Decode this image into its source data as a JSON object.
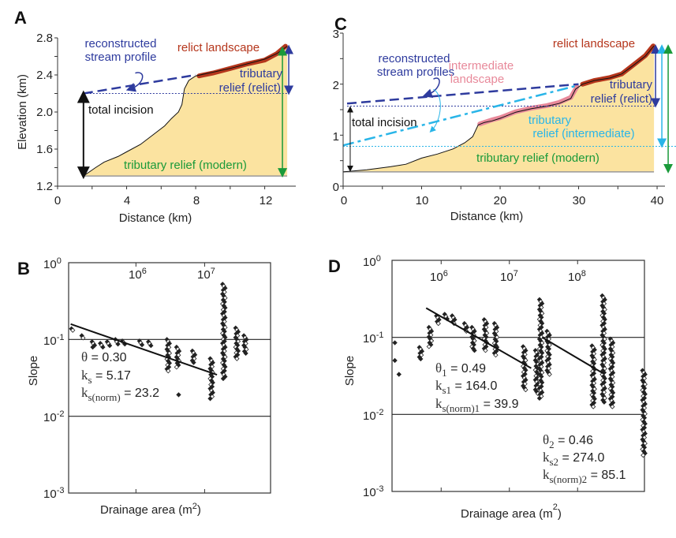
{
  "colors": {
    "relict": "#b5361c",
    "recon": "#2e3b9e",
    "intermediate": "#e8899a",
    "interm_blue": "#29b5e8",
    "modern": "#1a9a3a",
    "fill": "#fbe3a0"
  },
  "chart_data": [
    {
      "panel": "A",
      "type": "area",
      "xlabel": "Distance (km)",
      "ylabel": "Elevation (km)",
      "xlim": [
        0,
        13.8
      ],
      "ylim": [
        1.2,
        2.8
      ],
      "xticks": [
        "0",
        "4",
        "8",
        "12"
      ],
      "yticks": [
        "2.8",
        "2.4",
        "2.0",
        "1.6",
        "1.2"
      ],
      "profile": [
        [
          1.5,
          1.31
        ],
        [
          2.2,
          1.4
        ],
        [
          2.7,
          1.46
        ],
        [
          3.5,
          1.52
        ],
        [
          4,
          1.57
        ],
        [
          4.8,
          1.65
        ],
        [
          5.5,
          1.75
        ],
        [
          6.2,
          1.85
        ],
        [
          6.6,
          1.93
        ],
        [
          7.0,
          2.0
        ],
        [
          7.2,
          2.08
        ],
        [
          7.35,
          2.25
        ],
        [
          7.6,
          2.34
        ],
        [
          8,
          2.39
        ],
        [
          9,
          2.43
        ],
        [
          10,
          2.47
        ],
        [
          11,
          2.52
        ],
        [
          12,
          2.57
        ],
        [
          12.7,
          2.63
        ],
        [
          13.3,
          2.71
        ]
      ],
      "relict": [
        [
          8.2,
          2.39
        ],
        [
          9,
          2.42
        ],
        [
          10,
          2.47
        ],
        [
          11,
          2.52
        ],
        [
          12,
          2.56
        ],
        [
          12.7,
          2.63
        ],
        [
          13.2,
          2.71
        ]
      ],
      "reconstructed": [
        [
          1.5,
          2.2
        ],
        [
          8,
          2.4
        ]
      ],
      "relict_base": 2.2,
      "modern_base": 1.31,
      "labels": {
        "recon1": "reconstructed",
        "recon2": "stream profile",
        "relict": "relict landscape",
        "trib1": "tributary",
        "trib2": "relief (relict)",
        "incision": "total incision",
        "modern": "tributary relief (modern)"
      }
    },
    {
      "panel": "C",
      "type": "area",
      "xlabel": "Distance (km)",
      "ylabel": "",
      "xlim": [
        0,
        41
      ],
      "ylim": [
        0,
        3
      ],
      "xticks": [
        "0",
        "10",
        "20",
        "30",
        "40"
      ],
      "yticks": [
        "3",
        "2",
        "1",
        "0"
      ],
      "profile": [
        [
          0,
          0.28
        ],
        [
          3,
          0.32
        ],
        [
          6,
          0.38
        ],
        [
          8,
          0.43
        ],
        [
          10,
          0.55
        ],
        [
          12,
          0.63
        ],
        [
          14,
          0.73
        ],
        [
          15.5,
          0.85
        ],
        [
          16.5,
          0.97
        ],
        [
          17.2,
          1.2
        ],
        [
          18,
          1.25
        ],
        [
          19,
          1.28
        ],
        [
          20,
          1.33
        ],
        [
          22,
          1.45
        ],
        [
          24,
          1.52
        ],
        [
          26,
          1.57
        ],
        [
          27.5,
          1.62
        ],
        [
          29,
          1.72
        ],
        [
          29.6,
          1.9
        ],
        [
          30.5,
          2.0
        ],
        [
          32,
          2.07
        ],
        [
          34,
          2.12
        ],
        [
          35.5,
          2.2
        ],
        [
          37,
          2.37
        ],
        [
          38.5,
          2.55
        ],
        [
          39.6,
          2.75
        ]
      ],
      "relict": [
        [
          30.5,
          2.0
        ],
        [
          32,
          2.07
        ],
        [
          34,
          2.13
        ],
        [
          35.5,
          2.2
        ],
        [
          37,
          2.38
        ],
        [
          38.5,
          2.56
        ],
        [
          39.5,
          2.75
        ]
      ],
      "intermediate": [
        [
          17.4,
          1.22
        ],
        [
          19,
          1.3
        ],
        [
          20,
          1.34
        ],
        [
          22,
          1.46
        ],
        [
          24,
          1.53
        ],
        [
          26,
          1.58
        ],
        [
          27.5,
          1.64
        ],
        [
          29,
          1.74
        ],
        [
          29.8,
          1.95
        ]
      ],
      "reconstructed": [
        [
          0.5,
          1.62
        ],
        [
          30,
          2.0
        ]
      ],
      "reconstructed_intermediate": [
        [
          0,
          0.8
        ],
        [
          30,
          1.98
        ]
      ],
      "relict_base": 1.57,
      "intermediate_base": 0.78,
      "modern_base": 0.28,
      "labels": {
        "recon1": "reconstructed",
        "recon2": "stream profiles",
        "relict": "relict landscape",
        "inter1": "intermediate",
        "inter2": "landscape",
        "trib1": "tributary",
        "trib2": "relief (relict)",
        "incision": "total incision",
        "tribi1": "tributary",
        "tribi2": "relief (intermediate)",
        "modern": "tributary relief (modern)"
      }
    },
    {
      "panel": "B",
      "type": "scatter",
      "scale": "log-log",
      "xlabel": "Drainage area (m",
      "xlabel_exp": "2",
      "xlabel_close": ")",
      "ylabel": "Slope",
      "xlim_log10": [
        5.02,
        7.96
      ],
      "ylim_log10": [
        -3,
        0
      ],
      "xticks": [
        {
          "base": "10",
          "exp": "6",
          "log": 6
        },
        {
          "base": "10",
          "exp": "7",
          "log": 7
        }
      ],
      "yticks": [
        {
          "base": "10",
          "exp": "0"
        },
        {
          "base": "10",
          "exp": "-1"
        },
        {
          "base": "10",
          "exp": "-2"
        },
        {
          "base": "10",
          "exp": "-3"
        }
      ],
      "clusters_log10": [
        [
          5.08,
          -0.86,
          -0.88
        ],
        [
          5.23,
          -0.95,
          -0.98
        ],
        [
          5.38,
          -1.03,
          -1.1
        ],
        [
          5.5,
          -1.05,
          -1.1
        ],
        [
          5.6,
          -1.03,
          -1.08
        ],
        [
          5.72,
          -1.0,
          -1.06
        ],
        [
          5.82,
          -1.02,
          -1.06
        ],
        [
          6.07,
          -1.02,
          -1.07
        ],
        [
          6.2,
          -1.03,
          -1.08
        ],
        [
          6.47,
          -1.0,
          -1.41
        ],
        [
          6.61,
          -1.1,
          -1.36
        ],
        [
          6.64,
          -1.72,
          -1.72
        ],
        [
          6.84,
          -1.15,
          -1.3
        ],
        [
          7.1,
          -1.25,
          -1.77
        ],
        [
          7.28,
          -0.28,
          -1.51
        ],
        [
          7.47,
          -0.85,
          -1.25
        ],
        [
          7.59,
          -0.95,
          -1.18
        ]
      ],
      "fits_log10": [
        [
          [
            5.05,
            -0.8
          ],
          [
            7.18,
            -1.46
          ]
        ]
      ],
      "annotations": [
        {
          "sym": "θ",
          "sub": "",
          "val": " = 0.30"
        },
        {
          "sym": "k",
          "sub": "s",
          "val": " = 5.17"
        },
        {
          "sym": "k",
          "sub": "s(norm)",
          "val": " = 23.2"
        }
      ]
    },
    {
      "panel": "D",
      "type": "scatter",
      "scale": "log-log",
      "xlabel": "Drainage area (m",
      "xlabel_exp": "2",
      "xlabel_close": ")",
      "ylabel": "Slope",
      "xlim_log10": [
        5.28,
        8.98
      ],
      "ylim_log10": [
        -3,
        0
      ],
      "xticks": [
        {
          "base": "10",
          "exp": "6",
          "log": 6
        },
        {
          "base": "10",
          "exp": "7",
          "log": 7
        },
        {
          "base": "10",
          "exp": "8",
          "log": 8
        }
      ],
      "yticks": [
        {
          "base": "10",
          "exp": "0"
        },
        {
          "base": "10",
          "exp": "-1"
        },
        {
          "base": "10",
          "exp": "-2"
        },
        {
          "base": "10",
          "exp": "-3"
        }
      ],
      "clusters_log10": [
        [
          5.34,
          -1.07,
          -1.07
        ],
        [
          5.34,
          -1.3,
          -1.3
        ],
        [
          5.4,
          -1.48,
          -1.48
        ],
        [
          5.7,
          -1.13,
          -1.28
        ],
        [
          5.84,
          -0.87,
          -1.12
        ],
        [
          5.95,
          -0.72,
          -0.82
        ],
        [
          6.07,
          -0.7,
          -0.76
        ],
        [
          6.18,
          -0.72,
          -0.82
        ],
        [
          6.36,
          -0.82,
          -0.92
        ],
        [
          6.47,
          -0.87,
          -1.17
        ],
        [
          6.65,
          -0.77,
          -1.17
        ],
        [
          6.8,
          -0.82,
          -1.23
        ],
        [
          7.22,
          -1.12,
          -1.68
        ],
        [
          7.4,
          -1.17,
          -1.73
        ],
        [
          7.46,
          -0.51,
          -1.79
        ],
        [
          7.57,
          -0.92,
          -1.48
        ],
        [
          8.23,
          -1.11,
          -1.9
        ],
        [
          8.38,
          -0.46,
          -1.84
        ],
        [
          8.5,
          -1.02,
          -1.9
        ],
        [
          8.97,
          -1.43,
          -2.53
        ]
      ],
      "fits_log10": [
        [
          [
            5.78,
            -0.62
          ],
          [
            7.32,
            -1.4
          ]
        ],
        [
          [
            7.48,
            -1.0
          ],
          [
            8.38,
            -1.47
          ]
        ]
      ],
      "annotations": [
        {
          "sym": "θ",
          "sub": "1",
          "val": " = 0.49"
        },
        {
          "sym": "k",
          "sub": "s1",
          "val": " = 164.0"
        },
        {
          "sym": "k",
          "sub": "s(norm)1",
          "val": " = 39.9"
        },
        {
          "sym": "θ",
          "sub": "2",
          "val": " = 0.46"
        },
        {
          "sym": "k",
          "sub": "s2",
          "val": " = 274.0"
        },
        {
          "sym": "k",
          "sub": "s(norm)2",
          "val": " = 85.1"
        }
      ]
    }
  ]
}
